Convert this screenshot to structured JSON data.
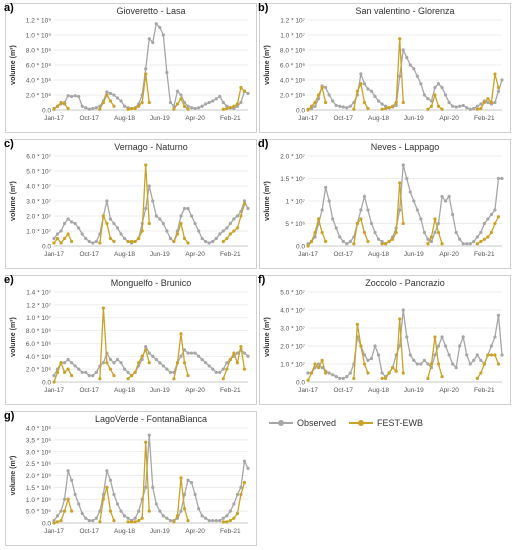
{
  "legend": {
    "observed": "Observed",
    "model": "FEST-EWB"
  },
  "colors": {
    "observed": "#a6a6a6",
    "model": "#c9a227",
    "grid": "#e6e6e6",
    "axis": "#bfbfbf"
  },
  "x_tick_labels": [
    "Jan-17",
    "Oct-17",
    "Aug-18",
    "Jun-19",
    "Apr-20",
    "Feb-21"
  ],
  "chart_data": [
    {
      "id": "a",
      "panel_label": "a)",
      "type": "line",
      "title": "Gioveretto - Lasa",
      "ylabel": "volume (m³)",
      "yticks": [
        "0.0",
        "2.0 * 10⁸",
        "4.0 * 10⁸",
        "6.0 * 10⁸",
        "8.0 * 10⁸",
        "1.0 * 10⁹",
        "1.2 * 10⁹"
      ],
      "ylim": [
        0,
        1.2
      ],
      "x": [
        0,
        55
      ],
      "observed": [
        0.02,
        0.05,
        0.08,
        0.1,
        0.19,
        0.18,
        0.19,
        0.18,
        0.05,
        0.03,
        0.01,
        0.02,
        0.03,
        0.05,
        0.12,
        0.24,
        0.22,
        0.2,
        0.16,
        0.12,
        0.05,
        0.03,
        0.02,
        0.03,
        0.08,
        0.2,
        0.55,
        0.95,
        0.9,
        1.15,
        1.1,
        1.0,
        0.5,
        0.1,
        0.05,
        0.25,
        0.2,
        0.1,
        0.05,
        0.03,
        0.02,
        0.03,
        0.05,
        0.08,
        0.1,
        0.12,
        0.15,
        0.18,
        0.1,
        0.05,
        0.03,
        0.02,
        0.05,
        0.1,
        0.25,
        0.22
      ],
      "model": [
        0.01,
        0.05,
        0.1,
        0.08,
        0.02,
        null,
        null,
        null,
        null,
        null,
        null,
        null,
        null,
        0.01,
        0.1,
        0.2,
        0.12,
        0.05,
        null,
        null,
        null,
        0.01,
        0.02,
        0.02,
        0.05,
        0.1,
        0.48,
        0.1,
        null,
        null,
        null,
        null,
        null,
        null,
        0.01,
        0.08,
        0.15,
        0.05,
        0.01,
        null,
        null,
        null,
        null,
        null,
        null,
        null,
        null,
        null,
        0.01,
        0.02,
        0.03,
        0.05,
        0.08,
        0.3,
        0.25,
        null
      ]
    },
    {
      "id": "b",
      "panel_label": "b)",
      "type": "line",
      "title": "San valentino - Glorenza",
      "ylabel": "volume (m³)",
      "yticks": [
        "0.0",
        "2.0 * 10⁶",
        "4.0 * 10⁶",
        "6.0 * 10⁶",
        "8.0 * 10⁶",
        "1.0 * 10⁷",
        "1.2 * 10⁷"
      ],
      "ylim": [
        0,
        1.2
      ],
      "x": [
        0,
        55
      ],
      "observed": [
        0.01,
        0.02,
        0.05,
        0.15,
        0.32,
        0.3,
        0.2,
        0.12,
        0.06,
        0.05,
        0.04,
        0.03,
        0.05,
        0.1,
        0.2,
        0.48,
        0.35,
        0.28,
        0.25,
        0.18,
        0.12,
        0.08,
        0.05,
        0.03,
        0.04,
        0.06,
        0.45,
        0.8,
        0.7,
        0.6,
        0.55,
        0.45,
        0.35,
        0.2,
        0.15,
        0.12,
        0.3,
        0.35,
        0.3,
        0.2,
        0.1,
        0.05,
        0.04,
        0.05,
        0.06,
        0.03,
        0.01,
        0.02,
        0.05,
        0.08,
        0.12,
        0.1,
        0.08,
        0.1,
        0.25,
        0.4
      ],
      "model": [
        0.0,
        0.05,
        0.1,
        0.2,
        0.3,
        0.1,
        null,
        null,
        null,
        null,
        null,
        null,
        null,
        0.01,
        0.25,
        0.35,
        0.1,
        0.02,
        null,
        null,
        null,
        0.01,
        0.02,
        0.03,
        0.05,
        0.1,
        0.95,
        0.1,
        null,
        null,
        null,
        null,
        null,
        null,
        0.01,
        0.05,
        0.2,
        0.05,
        0.01,
        null,
        null,
        null,
        null,
        null,
        null,
        null,
        null,
        null,
        0.01,
        0.02,
        0.1,
        0.15,
        0.1,
        0.48,
        0.3,
        null
      ]
    },
    {
      "id": "c",
      "panel_label": "c)",
      "type": "line",
      "title": "Vernago - Naturno",
      "ylabel": "volume (m³)",
      "yticks": [
        "0.0",
        "1.0 * 10⁷",
        "2.0 * 10⁷",
        "3.0 * 10⁷",
        "4.0 * 10⁷",
        "5.0 * 10⁷",
        "6.0 * 10⁷"
      ],
      "ylim": [
        0,
        6.0
      ],
      "x": [
        0,
        55
      ],
      "observed": [
        0.5,
        0.8,
        1.0,
        1.5,
        1.8,
        1.6,
        1.5,
        1.2,
        0.8,
        0.5,
        0.3,
        0.2,
        0.3,
        0.8,
        2.0,
        3.0,
        1.8,
        1.5,
        1.2,
        0.8,
        0.5,
        0.3,
        0.2,
        0.3,
        0.5,
        1.5,
        2.5,
        4.0,
        3.0,
        2.0,
        1.8,
        1.5,
        1.0,
        0.5,
        0.3,
        1.0,
        2.0,
        2.5,
        2.5,
        2.0,
        1.5,
        1.0,
        0.5,
        0.3,
        0.2,
        0.3,
        0.5,
        0.8,
        1.0,
        1.2,
        1.5,
        1.8,
        2.0,
        2.3,
        3.0,
        2.5
      ],
      "model": [
        0.2,
        0.5,
        0.2,
        0.5,
        0.8,
        0.3,
        null,
        null,
        null,
        null,
        null,
        null,
        null,
        0.2,
        2.0,
        1.5,
        0.5,
        0.3,
        null,
        null,
        null,
        0.3,
        0.3,
        0.3,
        0.5,
        1.0,
        5.4,
        1.5,
        null,
        null,
        null,
        null,
        null,
        null,
        0.3,
        0.8,
        1.5,
        0.5,
        0.2,
        null,
        null,
        null,
        null,
        null,
        null,
        null,
        null,
        null,
        0.3,
        0.5,
        0.8,
        1.0,
        1.2,
        2.0,
        2.8,
        null
      ]
    },
    {
      "id": "d",
      "panel_label": "d)",
      "type": "line",
      "title": "Neves - Lappago",
      "ylabel": "volume (m³)",
      "yticks": [
        "0.0",
        "5 * 10⁶",
        "1 * 10⁷",
        "1.5 * 10⁷",
        "2.0 * 10⁷"
      ],
      "ylim": [
        0,
        2.0
      ],
      "x": [
        0,
        55
      ],
      "observed": [
        0.05,
        0.1,
        0.2,
        0.5,
        0.8,
        1.3,
        1.0,
        0.6,
        0.4,
        0.2,
        0.1,
        0.05,
        0.1,
        0.2,
        0.5,
        0.8,
        1.1,
        0.8,
        0.5,
        0.3,
        0.15,
        0.1,
        0.05,
        0.1,
        0.2,
        0.4,
        0.8,
        1.8,
        1.5,
        1.2,
        1.0,
        0.8,
        0.6,
        0.3,
        0.15,
        0.1,
        0.3,
        0.5,
        1.1,
        1.0,
        1.1,
        0.7,
        0.3,
        0.15,
        0.05,
        0.05,
        0.05,
        0.1,
        0.2,
        0.3,
        0.5,
        0.6,
        0.7,
        0.8,
        1.5,
        1.5
      ],
      "model": [
        0.0,
        0.1,
        0.3,
        0.6,
        0.3,
        0.1,
        null,
        null,
        null,
        null,
        null,
        null,
        null,
        0.05,
        0.5,
        0.6,
        0.3,
        0.1,
        null,
        null,
        null,
        0.05,
        0.05,
        0.1,
        0.15,
        0.3,
        1.4,
        0.5,
        null,
        null,
        null,
        null,
        null,
        null,
        0.05,
        0.2,
        0.6,
        0.3,
        0.05,
        null,
        null,
        null,
        null,
        null,
        null,
        null,
        null,
        null,
        0.05,
        0.1,
        0.15,
        0.2,
        0.3,
        0.5,
        0.65,
        null
      ]
    },
    {
      "id": "e",
      "panel_label": "e)",
      "type": "line",
      "title": "Monguelfo - Brunico",
      "ylabel": "volume (m³)",
      "yticks": [
        "0.0",
        "2.0 * 10⁶",
        "4.0 * 10⁶",
        "6.0 * 10⁶",
        "8.0 * 10⁶",
        "1.0 * 10⁷",
        "1.2 * 10⁷",
        "1.4 * 10⁷"
      ],
      "ylim": [
        0,
        1.4
      ],
      "x": [
        0,
        55
      ],
      "observed": [
        0.1,
        0.2,
        0.3,
        0.3,
        0.35,
        0.3,
        0.25,
        0.2,
        0.15,
        0.15,
        0.1,
        0.1,
        0.15,
        0.25,
        0.3,
        0.45,
        0.35,
        0.3,
        0.35,
        0.3,
        0.2,
        0.15,
        0.1,
        0.15,
        0.25,
        0.35,
        0.55,
        0.45,
        0.4,
        0.35,
        0.3,
        0.25,
        0.2,
        0.15,
        0.15,
        0.3,
        0.4,
        0.5,
        0.45,
        0.45,
        0.45,
        0.4,
        0.35,
        0.3,
        0.25,
        0.2,
        0.15,
        0.15,
        0.2,
        0.3,
        0.35,
        0.4,
        0.45,
        0.5,
        0.45,
        0.4
      ],
      "model": [
        0.0,
        0.15,
        0.3,
        0.15,
        0.2,
        0.1,
        null,
        null,
        null,
        null,
        null,
        null,
        null,
        0.05,
        1.15,
        0.3,
        0.2,
        0.1,
        null,
        null,
        null,
        0.05,
        0.1,
        0.15,
        0.3,
        0.4,
        0.5,
        0.3,
        null,
        null,
        null,
        null,
        null,
        null,
        0.05,
        0.3,
        0.75,
        0.3,
        0.1,
        null,
        null,
        null,
        null,
        null,
        null,
        null,
        null,
        null,
        0.05,
        0.2,
        0.35,
        0.45,
        0.3,
        0.55,
        0.2,
        null
      ]
    },
    {
      "id": "f",
      "panel_label": "f)",
      "type": "line",
      "title": "Zoccolo - Pancrazio",
      "ylabel": "volume (m³)",
      "yticks": [
        "0.0",
        "1.0 * 10⁷",
        "2.0 * 10⁷",
        "3.0 * 10⁷",
        "4.0 * 10⁷",
        "5.0 * 10⁷"
      ],
      "ylim": [
        0,
        5.0
      ],
      "x": [
        0,
        55
      ],
      "observed": [
        0.5,
        0.5,
        0.8,
        1.0,
        0.8,
        0.6,
        0.5,
        0.4,
        0.3,
        0.2,
        0.2,
        0.3,
        0.5,
        1.0,
        2.5,
        2.0,
        1.5,
        1.2,
        1.3,
        2.0,
        1.5,
        0.5,
        0.3,
        0.5,
        0.8,
        1.5,
        2.0,
        4.0,
        2.5,
        1.5,
        1.2,
        1.0,
        1.0,
        1.2,
        1.0,
        0.8,
        1.5,
        2.0,
        2.5,
        2.0,
        1.5,
        1.0,
        0.8,
        2.0,
        2.5,
        1.5,
        1.0,
        1.2,
        1.5,
        1.2,
        1.0,
        1.5,
        2.0,
        2.5,
        3.7,
        1.5
      ],
      "model": [
        0.1,
        0.5,
        1.0,
        0.8,
        1.2,
        0.5,
        null,
        null,
        null,
        null,
        null,
        null,
        null,
        0.2,
        3.2,
        2.0,
        1.0,
        0.5,
        null,
        null,
        null,
        0.2,
        0.2,
        0.5,
        0.8,
        0.6,
        3.5,
        0.5,
        null,
        null,
        null,
        null,
        null,
        null,
        0.2,
        1.0,
        2.5,
        1.0,
        0.3,
        null,
        null,
        null,
        null,
        null,
        null,
        null,
        null,
        null,
        0.2,
        0.5,
        1.0,
        1.5,
        1.5,
        1.5,
        1.0,
        null
      ]
    },
    {
      "id": "g",
      "panel_label": "g)",
      "type": "line",
      "title": "LagoVerde - FontanaBianca",
      "ylabel": "volume (m³)",
      "yticks": [
        "0.0",
        "5.0 * 10⁵",
        "1.0 * 10⁶",
        "1.5 * 10⁶",
        "2.0 * 10⁶",
        "2.5 * 10⁶",
        "3.0 * 10⁶",
        "3.5 * 10⁶",
        "4.0 * 10⁶"
      ],
      "ylim": [
        0,
        4.0
      ],
      "x": [
        0,
        55
      ],
      "observed": [
        0.1,
        0.3,
        0.5,
        1.0,
        2.2,
        1.8,
        1.2,
        0.8,
        0.4,
        0.2,
        0.1,
        0.1,
        0.2,
        0.5,
        1.2,
        2.2,
        1.8,
        1.2,
        0.8,
        0.5,
        0.3,
        0.2,
        0.1,
        0.2,
        0.5,
        1.0,
        1.5,
        3.7,
        1.5,
        0.8,
        0.5,
        0.3,
        0.2,
        0.1,
        0.1,
        0.2,
        0.5,
        1.2,
        1.8,
        1.7,
        1.2,
        0.6,
        0.3,
        0.2,
        0.1,
        0.1,
        0.1,
        0.1,
        0.2,
        0.3,
        0.5,
        0.8,
        1.2,
        1.5,
        2.6,
        2.3
      ],
      "model": [
        0.0,
        0.05,
        0.1,
        0.5,
        1.0,
        0.5,
        null,
        null,
        null,
        null,
        null,
        null,
        null,
        0.05,
        1.0,
        1.5,
        0.5,
        0.1,
        null,
        null,
        null,
        0.05,
        0.05,
        0.05,
        0.1,
        0.2,
        3.4,
        0.5,
        null,
        null,
        null,
        null,
        null,
        null,
        0.05,
        0.3,
        1.9,
        0.6,
        0.1,
        null,
        null,
        null,
        null,
        null,
        null,
        null,
        null,
        null,
        0.05,
        0.05,
        0.1,
        0.2,
        0.4,
        1.2,
        1.7,
        null
      ]
    }
  ]
}
